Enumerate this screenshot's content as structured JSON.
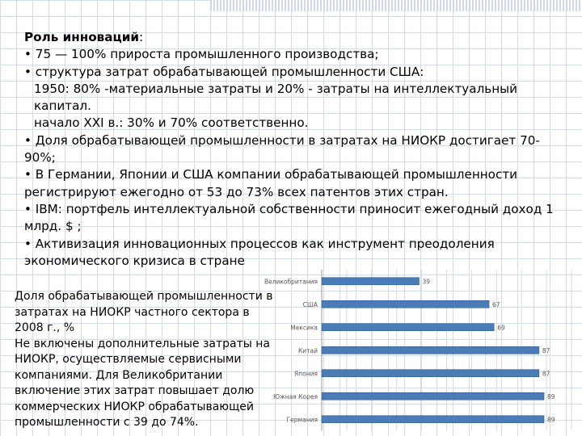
{
  "slide": {
    "title_bold": "Роль инноваций",
    "title_colon": ":",
    "lines": [
      "• 75 — 100% прироста промышленного производства;",
      "• структура затрат обрабатывающей промышленности США:",
      "1950: 80% -материальные затраты и 20% - затраты на интеллектуальный капитал.",
      "начало XXI в.: 30% и 70% соответственно.",
      "• Доля обрабатывающей промышленности в затратах на НИОКР достигает 70-90%;",
      "• В Германии, Японии и США компании обрабатывающей промышленности регистрируют ежегодно от 53 до 73% всех патентов этих стран.",
      "• IBM: портфель интеллектуальной собственности приносит ежегодный доход 1 млрд. $ ;",
      "• Активизация инновационных процессов как инструмент преодоления экономического кризиса в стране"
    ]
  },
  "caption": {
    "lines": [
      "Доля обрабатывающей промышленности в затратах на НИОКР частного сектора в 2008 г., %",
      "Не включены дополнительные затраты на НИОКР, осуществляемые сервисными компаниями. Для Великобритании включение этих затрат повышает долю коммерческих НИОКР обрабатывающей промышленности с 39 до 74%."
    ]
  },
  "colors": {
    "bar": "#4a7cb8",
    "bar_dark": "#2f5d94",
    "label": "#555555"
  },
  "chart_data": {
    "type": "bar",
    "orientation": "horizontal",
    "categories": [
      "Великобритания",
      "США",
      "Мексика",
      "Китай",
      "Япония",
      "Южная Корея",
      "Германия"
    ],
    "values": [
      39,
      67,
      69,
      87,
      87,
      89,
      89
    ],
    "xlim": [
      0,
      100
    ],
    "grid": true
  }
}
